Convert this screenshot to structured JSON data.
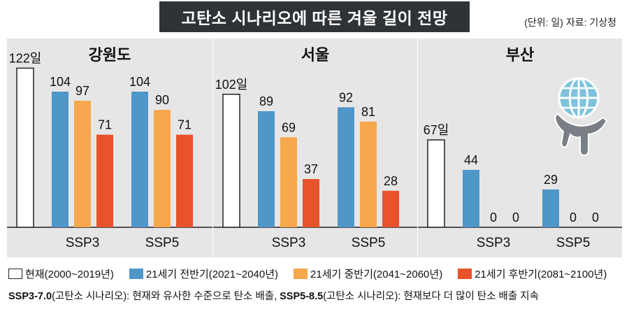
{
  "title": "고탄소 시나리오에 따른 겨울 길이 전망",
  "unit_source": "(단위: 일)  자료: 기상청",
  "colors": {
    "current": "#ffffff",
    "early": "#4f96c9",
    "mid": "#f7a74c",
    "late": "#e8532b",
    "panel_bg": "#e6e6e6",
    "border": "#222222"
  },
  "legend": [
    {
      "label": "현재(2000~2019년)",
      "color": "#ffffff"
    },
    {
      "label": "21세기 전반기(2021~2040년)",
      "color": "#4f96c9"
    },
    {
      "label": "21세기 중반기(2041~2060년)",
      "color": "#f7a74c"
    },
    {
      "label": "21세기 후반기(2081~2100년)",
      "color": "#e8532b"
    }
  ],
  "note": {
    "ssp3_code": "SSP3-7.0",
    "ssp3_text": "(고탄소 시나리오): 현재와 유사한 수준으로 탄소 배출, ",
    "ssp5_code": "SSP5-8.5",
    "ssp5_text": "(고탄소 시나리오): 현재보다 더 많이 탄소 배출 지속"
  },
  "icon": "globe-melting-hand-icon",
  "chart_data": {
    "type": "bar",
    "ylabel": "일",
    "ylim": [
      0,
      122
    ],
    "scenarios": [
      "SSP3",
      "SSP5"
    ],
    "periods": [
      "21세기 전반기",
      "21세기 중반기",
      "21세기 후반기"
    ],
    "regions": [
      {
        "name": "강원도",
        "current": 122,
        "current_label": "122일",
        "series": [
          {
            "scenario": "SSP3",
            "values": [
              104,
              97,
              71
            ]
          },
          {
            "scenario": "SSP5",
            "values": [
              104,
              90,
              71
            ]
          }
        ]
      },
      {
        "name": "서울",
        "current": 102,
        "current_label": "102일",
        "series": [
          {
            "scenario": "SSP3",
            "values": [
              89,
              69,
              37
            ]
          },
          {
            "scenario": "SSP5",
            "values": [
              92,
              81,
              28
            ]
          }
        ]
      },
      {
        "name": "부산",
        "current": 67,
        "current_label": "67일",
        "series": [
          {
            "scenario": "SSP3",
            "values": [
              44,
              0,
              0
            ]
          },
          {
            "scenario": "SSP5",
            "values": [
              29,
              0,
              0
            ]
          }
        ]
      }
    ]
  }
}
